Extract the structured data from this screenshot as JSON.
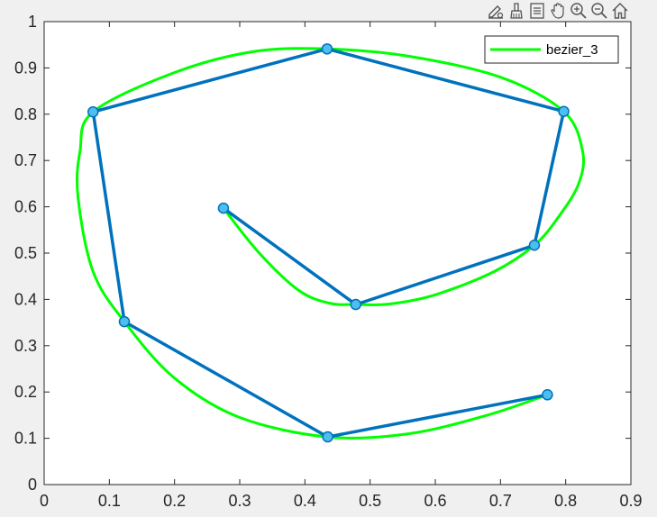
{
  "toolbar": {
    "icons": [
      "edit-data-icon",
      "brush-icon",
      "data-tips-icon",
      "pan-icon",
      "zoom-in-icon",
      "zoom-out-icon",
      "home-icon"
    ]
  },
  "chart_data": {
    "type": "line",
    "title": "",
    "xlabel": "",
    "ylabel": "",
    "xlim": [
      0,
      0.9
    ],
    "ylim": [
      0,
      1
    ],
    "xticks": [
      0,
      0.1,
      0.2,
      0.3,
      0.4,
      0.5,
      0.6,
      0.7,
      0.8,
      0.9
    ],
    "xtick_labels": [
      "0",
      "0.1",
      "0.2",
      "0.3",
      "0.4",
      "0.5",
      "0.6",
      "0.7",
      "0.8",
      "0.9"
    ],
    "yticks": [
      0,
      0.1,
      0.2,
      0.3,
      0.4,
      0.5,
      0.6,
      0.7,
      0.8,
      0.9,
      1
    ],
    "ytick_labels": [
      "0",
      "0.1",
      "0.2",
      "0.3",
      "0.4",
      "0.5",
      "0.6",
      "0.7",
      "0.8",
      "0.9",
      "1"
    ],
    "grid": false,
    "legend": {
      "placement": "top-right",
      "entries": [
        "bezier_3"
      ]
    },
    "control_polygon": {
      "color": "#0072BD",
      "marker_fill": "#4DBEEE",
      "points": [
        {
          "x": 0.275,
          "y": 0.597
        },
        {
          "x": 0.478,
          "y": 0.389
        },
        {
          "x": 0.752,
          "y": 0.517
        },
        {
          "x": 0.797,
          "y": 0.806
        },
        {
          "x": 0.434,
          "y": 0.941
        },
        {
          "x": 0.075,
          "y": 0.805
        },
        {
          "x": 0.123,
          "y": 0.352
        },
        {
          "x": 0.435,
          "y": 0.103
        },
        {
          "x": 0.772,
          "y": 0.194
        }
      ]
    },
    "series": [
      {
        "name": "bezier_3",
        "color": "#00FF00",
        "x": [
          0.275,
          0.33,
          0.39,
          0.437,
          0.478,
          0.53,
          0.6,
          0.69,
          0.752,
          0.79,
          0.82,
          0.826,
          0.797,
          0.7,
          0.56,
          0.434,
          0.32,
          0.2,
          0.075,
          0.055,
          0.052,
          0.075,
          0.123,
          0.2,
          0.3,
          0.435,
          0.56,
          0.68,
          0.772
        ],
        "y": [
          0.597,
          0.5,
          0.42,
          0.392,
          0.389,
          0.39,
          0.41,
          0.46,
          0.517,
          0.58,
          0.65,
          0.72,
          0.806,
          0.88,
          0.925,
          0.941,
          0.935,
          0.89,
          0.805,
          0.72,
          0.62,
          0.46,
          0.352,
          0.23,
          0.145,
          0.103,
          0.11,
          0.15,
          0.194
        ]
      }
    ]
  }
}
